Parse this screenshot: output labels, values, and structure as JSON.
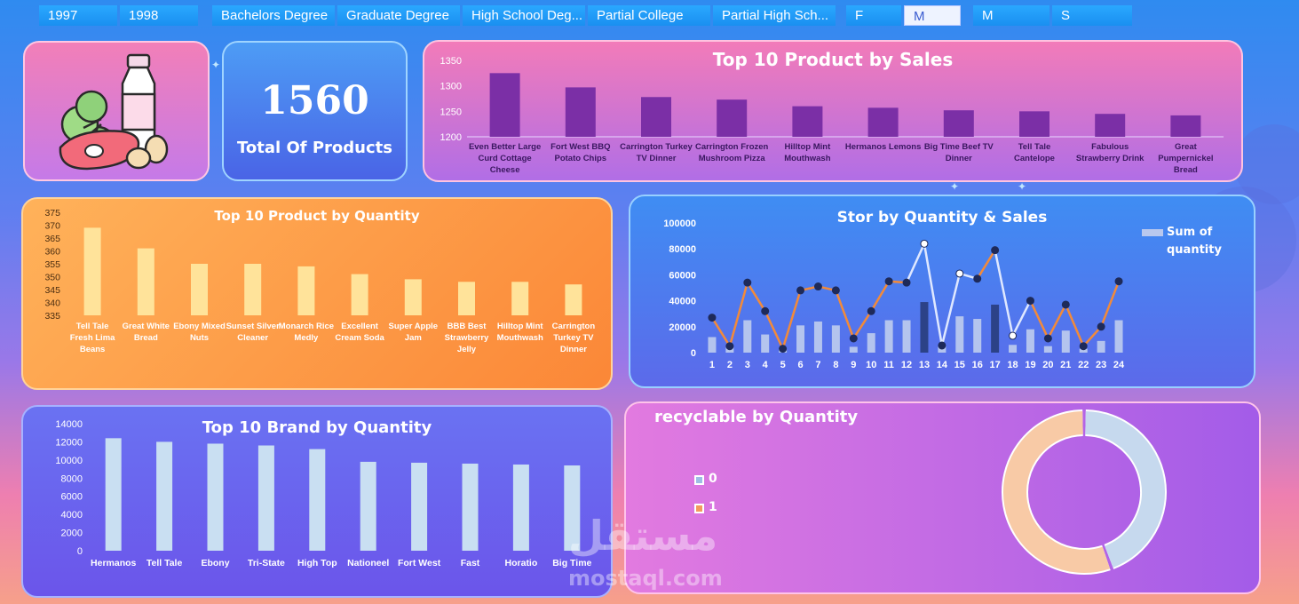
{
  "colors": {
    "slicer": "#1a8ff0",
    "sales_bar": "#7b2fa6",
    "qty_product_bar": "#ffe39a",
    "brand_bar": "#c9dff2",
    "store_bar_light": "#b9c8ee",
    "store_bar_dark": "#2a3f82",
    "store_line_orange": "#f28a3a",
    "store_line_light": "#dfe8ff",
    "store_marker": "#1e2a5a",
    "donut_0": "#c6d9ee",
    "donut_1": "#f8caa6"
  },
  "slicers": {
    "years": [
      "1997",
      "1998"
    ],
    "education": [
      "Bachelors Degree",
      "Graduate Degree",
      "High School Deg...",
      "Partial College",
      "Partial High Sch..."
    ],
    "gender": [
      "F",
      "M"
    ],
    "marital": [
      "M",
      "S"
    ]
  },
  "kpi": {
    "value": "1560",
    "label": "Total Of Products",
    "image": "groceries-illustration"
  },
  "chart_data": [
    {
      "type": "bar",
      "title": "Top 10 Product by Sales",
      "categories": [
        "Even Better Large Curd Cottage Cheese",
        "Fort West BBQ Potato Chips",
        "Carrington Turkey TV Dinner",
        "Carrington Frozen Mushroom Pizza",
        "Hilltop Mint Mouthwash",
        "Hermanos Lemons",
        "Big Time Beef TV Dinner",
        "Tell Tale Cantelope",
        "Fabulous Strawberry Drink",
        "Great Pumpernickel Bread"
      ],
      "values": [
        1325,
        1297,
        1278,
        1273,
        1260,
        1257,
        1252,
        1250,
        1245,
        1242
      ],
      "ylim": [
        1200,
        1350
      ],
      "yticks": [
        "1200",
        "1250",
        "1300",
        "1350"
      ],
      "grid": false
    },
    {
      "type": "bar",
      "title": "Top 10 Product by Quantity",
      "categories": [
        "Tell Tale Fresh Lima Beans",
        "Great White Bread",
        "Ebony Mixed Nuts",
        "Sunset Silver Cleaner",
        "Monarch Rice Medly",
        "Excellent Cream Soda",
        "Super Apple Jam",
        "BBB Best Strawberry Jelly",
        "Hilltop Mint Mouthwash",
        "Carrington Turkey TV Dinner"
      ],
      "values": [
        369,
        361,
        355,
        355,
        354,
        351,
        349,
        348,
        348,
        347
      ],
      "ylim": [
        335,
        375
      ],
      "yticks": [
        "335",
        "340",
        "345",
        "350",
        "355",
        "360",
        "365",
        "370",
        "375"
      ],
      "grid": false
    },
    {
      "type": "line",
      "title": "Stor by Quantity & Sales",
      "categories": [
        "1",
        "2",
        "3",
        "4",
        "5",
        "6",
        "7",
        "8",
        "9",
        "10",
        "11",
        "12",
        "13",
        "14",
        "15",
        "16",
        "17",
        "18",
        "19",
        "20",
        "21",
        "22",
        "23",
        "24"
      ],
      "series": [
        {
          "name": "Sum of quantity",
          "kind": "bar",
          "values": [
            12000,
            4000,
            25000,
            14000,
            2500,
            21000,
            24000,
            21000,
            4500,
            15000,
            25000,
            25000,
            39000,
            5000,
            28000,
            26000,
            37000,
            6000,
            18000,
            5000,
            17000,
            3000,
            9000,
            25000
          ]
        },
        {
          "kind": "line",
          "values": [
            27000,
            5000,
            54000,
            32000,
            3000,
            48000,
            51000,
            48000,
            11000,
            32000,
            55000,
            54000,
            84000,
            5500,
            61000,
            57000,
            79000,
            13000,
            40000,
            11000,
            37000,
            5000,
            20000,
            55000
          ]
        }
      ],
      "ylim": [
        0,
        100000
      ],
      "yticks": [
        "0",
        "20000",
        "40000",
        "60000",
        "80000",
        "100000"
      ],
      "legend": "top-right",
      "legend_label": "Sum of quantity"
    },
    {
      "type": "bar",
      "title": "Top 10 Brand by Quantity",
      "categories": [
        "Hermanos",
        "Tell Tale",
        "Ebony",
        "Tri-State",
        "High Top",
        "Nationeel",
        "Fort West",
        "Fast",
        "Horatio",
        "Big Time"
      ],
      "values": [
        12400,
        12000,
        11800,
        11600,
        11200,
        9800,
        9700,
        9600,
        9500,
        9400
      ],
      "ylim": [
        0,
        14000
      ],
      "yticks": [
        "0",
        "2000",
        "4000",
        "6000",
        "8000",
        "10000",
        "12000",
        "14000"
      ],
      "grid": false
    },
    {
      "type": "pie",
      "title": "recyclable by Quantity",
      "categories": [
        "0",
        "1"
      ],
      "values": [
        44.5,
        55.5
      ],
      "legend": "left"
    }
  ],
  "watermark": {
    "arabic": "مستقل",
    "latin": "mostaql.com"
  }
}
